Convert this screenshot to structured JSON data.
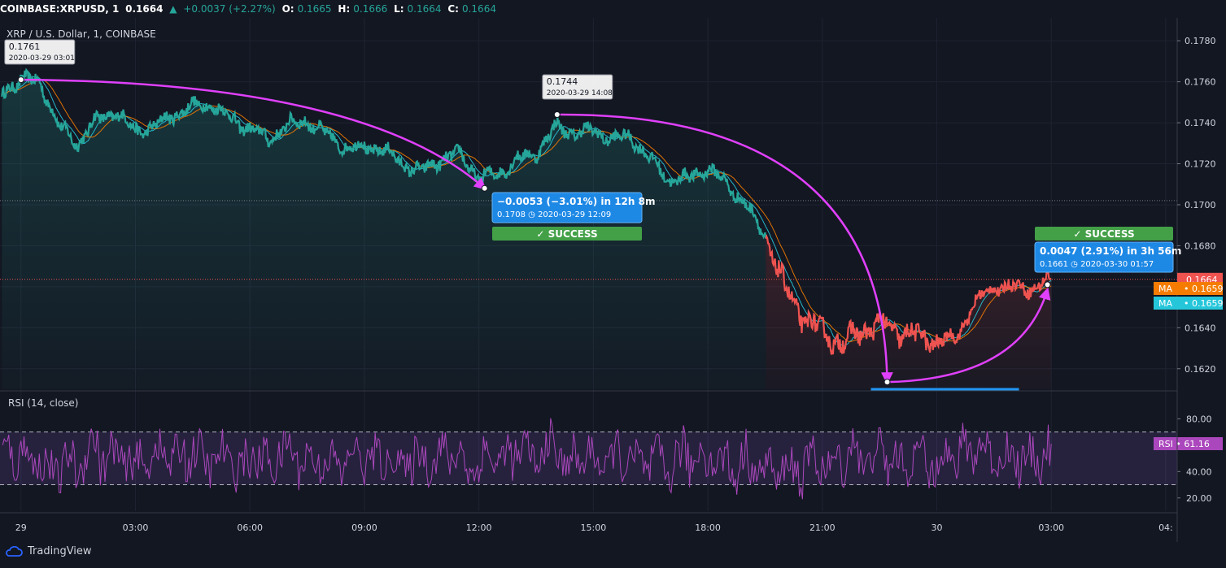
{
  "header": {
    "symbol": "COINBASE:XRPUSD, 1",
    "last": "0.1664",
    "arrow": "▲",
    "change": "+0.0037 (+2.27%)",
    "o_label": "O:",
    "o_value": "0.1665",
    "h_label": "H:",
    "h_value": "0.1666",
    "l_label": "L:",
    "l_value": "0.1664",
    "c_label": "C:",
    "c_value": "0.1664"
  },
  "chart_data": [
    {
      "type": "line",
      "title": "XRP / U.S. Dollar, 1, COINBASE",
      "y_ticks": [
        "0.1780",
        "0.1760",
        "0.1740",
        "0.1720",
        "0.1700",
        "0.1680",
        "0.1660",
        "0.1640",
        "0.1620"
      ],
      "ylim": [
        0.161,
        0.1788
      ],
      "x_ticks": [
        "29",
        "03:00",
        "06:00",
        "09:00",
        "12:00",
        "15:00",
        "18:00",
        "21:00",
        "30",
        "03:00",
        "04:"
      ],
      "x_hours": [
        0,
        3,
        6,
        9,
        12,
        15,
        18,
        21,
        24,
        27,
        30
      ],
      "xlim": [
        -0.55,
        30.3
      ],
      "series_price": {
        "x": [
          -0.5,
          0,
          0.5,
          1,
          1.5,
          2,
          2.5,
          3,
          3.5,
          4,
          4.5,
          5,
          5.5,
          6,
          6.5,
          7,
          7.5,
          8,
          8.5,
          9,
          9.5,
          10,
          10.5,
          11,
          11.5,
          12,
          12.5,
          13,
          13.5,
          14,
          14.5,
          15,
          15.5,
          16,
          16.5,
          17,
          17.5,
          18,
          18.5,
          19,
          19.5,
          20,
          20.5,
          21,
          21.5,
          22,
          22.5,
          23,
          23.5,
          24,
          24.5,
          25,
          25.5,
          26,
          26.5,
          27
        ],
        "values": [
          0.1755,
          0.1761,
          0.176,
          0.1738,
          0.173,
          0.1742,
          0.1745,
          0.1736,
          0.1738,
          0.1744,
          0.1748,
          0.1749,
          0.1742,
          0.1737,
          0.1732,
          0.1739,
          0.1741,
          0.1734,
          0.1728,
          0.1728,
          0.1727,
          0.172,
          0.1716,
          0.1722,
          0.1725,
          0.1713,
          0.1715,
          0.1722,
          0.1725,
          0.1738,
          0.1735,
          0.1736,
          0.1732,
          0.1733,
          0.1722,
          0.1712,
          0.1713,
          0.1718,
          0.171,
          0.17,
          0.1685,
          0.166,
          0.1645,
          0.1638,
          0.1632,
          0.1638,
          0.1642,
          0.1638,
          0.1636,
          0.1633,
          0.1635,
          0.1652,
          0.166,
          0.166,
          0.1659,
          0.1664
        ]
      },
      "series": [
        {
          "name": "MA",
          "color": "#f57c00",
          "value": "0.1659"
        },
        {
          "name": "MA",
          "color": "#26c6da",
          "value": "0.1659"
        }
      ],
      "price_levels": {
        "dotted_gray": 0.1702,
        "dotted_red": 0.16636
      },
      "last_price_label": "0.1664",
      "annotations": {
        "start_label": {
          "price": "0.1761",
          "date": "2020-03-29 03:01"
        },
        "mid_label": {
          "price": "0.1744",
          "date": "2020-03-29 14:08"
        },
        "measure1": {
          "line1": "−0.0053 (−3.01%) in 12h 8m",
          "line2": "0.1708 ◷ 2020-03-29  12:09",
          "badge": "✓ SUCCESS"
        },
        "measure2": {
          "line1": "0.0047 (2.91%) in 3h 56m",
          "line2": "0.1661 ◷ 2020-03-30  01:57",
          "badge": "✓ SUCCESS"
        }
      }
    },
    {
      "type": "line",
      "title": "RSI (14, close)",
      "y_ticks": [
        "80.00",
        "40.00",
        "20.00"
      ],
      "tick_values": [
        80,
        40,
        20
      ],
      "ylim": [
        10,
        100
      ],
      "bands": {
        "upper": 70,
        "lower": 30
      },
      "series": [
        {
          "name": "RSI",
          "color": "#ab47bc",
          "value": "61.16"
        }
      ]
    }
  ],
  "footer": {
    "brand": "TradingView"
  }
}
